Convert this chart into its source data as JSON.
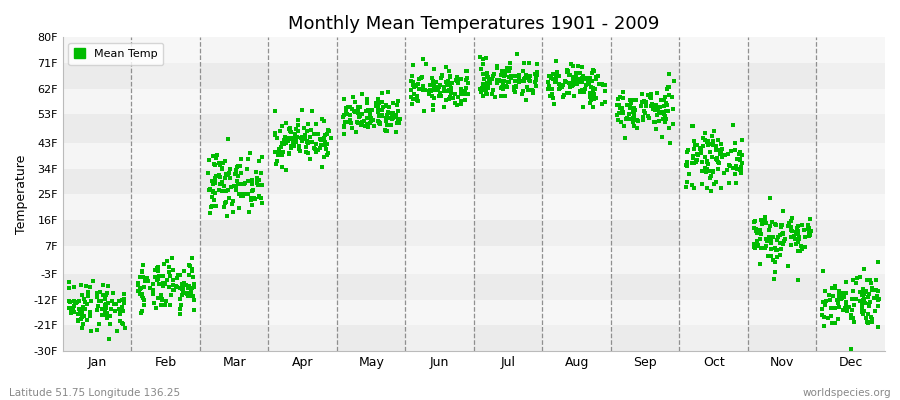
{
  "title": "Monthly Mean Temperatures 1901 - 2009",
  "ylabel": "Temperature",
  "xlabel_bottom_left": "Latitude 51.75 Longitude 136.25",
  "xlabel_bottom_right": "worldspecies.org",
  "yticks": [
    -30,
    -21,
    -12,
    -3,
    7,
    16,
    25,
    34,
    43,
    53,
    62,
    71,
    80
  ],
  "ytick_labels": [
    "-30F",
    "-21F",
    "-12F",
    "-3F",
    "7F",
    "16F",
    "25F",
    "34F",
    "43F",
    "53F",
    "62F",
    "71F",
    "80F"
  ],
  "ylim": [
    -30,
    80
  ],
  "months": [
    "Jan",
    "Feb",
    "Mar",
    "Apr",
    "May",
    "Jun",
    "Jul",
    "Aug",
    "Sep",
    "Oct",
    "Nov",
    "Dec"
  ],
  "dot_color": "#00BB00",
  "dot_size": 5,
  "background_color": "#ffffff",
  "plot_bg_color": "#f0f0f0",
  "alt_col_color": "#e6e6e6",
  "alt_row_color_1": "#ebebeb",
  "alt_row_color_2": "#f5f5f5",
  "grid_color": "#777777",
  "legend_label": "Mean Temp",
  "monthly_mean_temps_F": {
    "Jan": -14.0,
    "Feb": -8.0,
    "Mar": 29.0,
    "Apr": 44.0,
    "May": 52.0,
    "Jun": 62.0,
    "Jul": 65.0,
    "Aug": 63.5,
    "Sep": 54.5,
    "Oct": 37.0,
    "Nov": 10.0,
    "Dec": -12.0
  },
  "monthly_std_F": {
    "Jan": 4.5,
    "Feb": 4.5,
    "Mar": 5.0,
    "Apr": 4.0,
    "May": 3.5,
    "Jun": 3.5,
    "Jul": 3.5,
    "Aug": 3.5,
    "Sep": 4.0,
    "Oct": 4.5,
    "Nov": 5.0,
    "Dec": 5.0
  },
  "n_years": 109
}
